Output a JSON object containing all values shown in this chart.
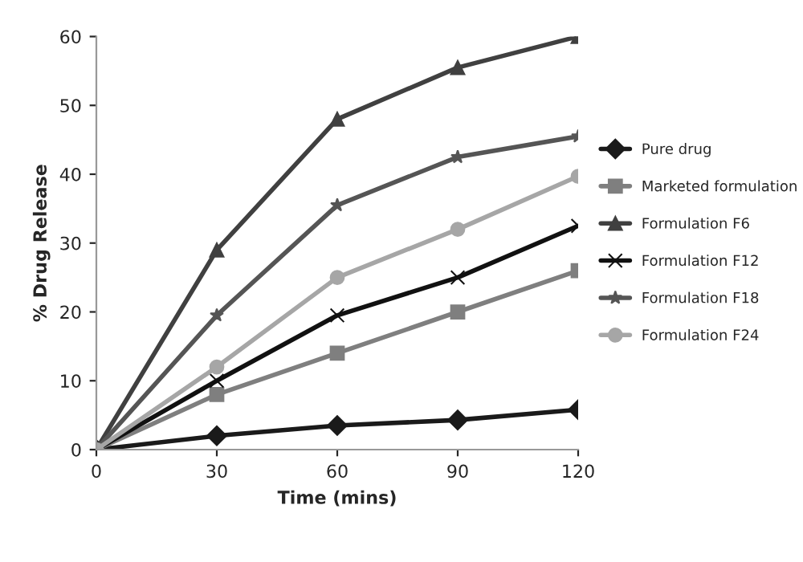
{
  "chart_data": {
    "type": "line",
    "xlabel": "Time (mins)",
    "ylabel": "% Drug Release",
    "x": [
      0,
      30,
      60,
      90,
      120
    ],
    "xlim": [
      0,
      120
    ],
    "xticks": [
      0,
      30,
      60,
      90,
      120
    ],
    "ylim": [
      0,
      60
    ],
    "yticks": [
      0,
      10,
      20,
      30,
      40,
      50,
      60
    ],
    "grid": false,
    "legend": "right",
    "line_style": "solid",
    "series": [
      {
        "name": "Pure drug",
        "color": "#1a1a1a",
        "marker": "diamond",
        "values": [
          0,
          2,
          3.5,
          4.3,
          5.8
        ]
      },
      {
        "name": "Marketed formulation",
        "color": "#7f7f7f",
        "marker": "square",
        "values": [
          0,
          8,
          14,
          20,
          26
        ]
      },
      {
        "name": "Formulation F6",
        "color": "#404040",
        "marker": "triangle",
        "values": [
          0,
          29,
          48,
          55.5,
          60
        ]
      },
      {
        "name": "Formulation F12",
        "color": "#111111",
        "marker": "x",
        "values": [
          0,
          10,
          19.5,
          25,
          32.5
        ]
      },
      {
        "name": "Formulation F18",
        "color": "#555555",
        "marker": "star",
        "values": [
          0,
          19.5,
          35.5,
          42.5,
          45.5
        ]
      },
      {
        "name": "Formulation F24",
        "color": "#a6a6a6",
        "marker": "circle",
        "values": [
          0,
          12,
          25,
          32,
          39.7
        ]
      }
    ]
  }
}
